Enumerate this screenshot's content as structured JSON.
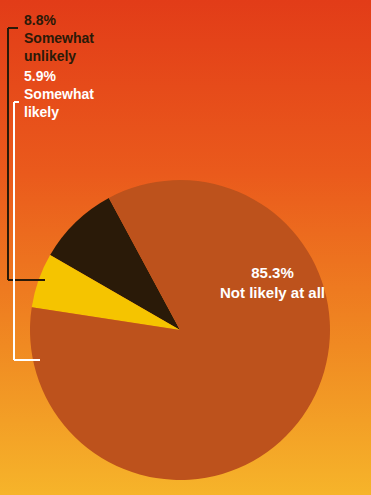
{
  "chart_data": {
    "type": "pie",
    "categories": [
      "Somewhat unlikely",
      "Somewhat likely",
      "Not likely at all"
    ],
    "values": [
      8.8,
      5.9,
      85.3
    ],
    "value_labels": [
      "8.8%",
      "5.9%",
      "85.3%"
    ],
    "colors": [
      "#2a1a08",
      "#f5c400",
      "#bd521c"
    ],
    "data_labels": true
  }
}
